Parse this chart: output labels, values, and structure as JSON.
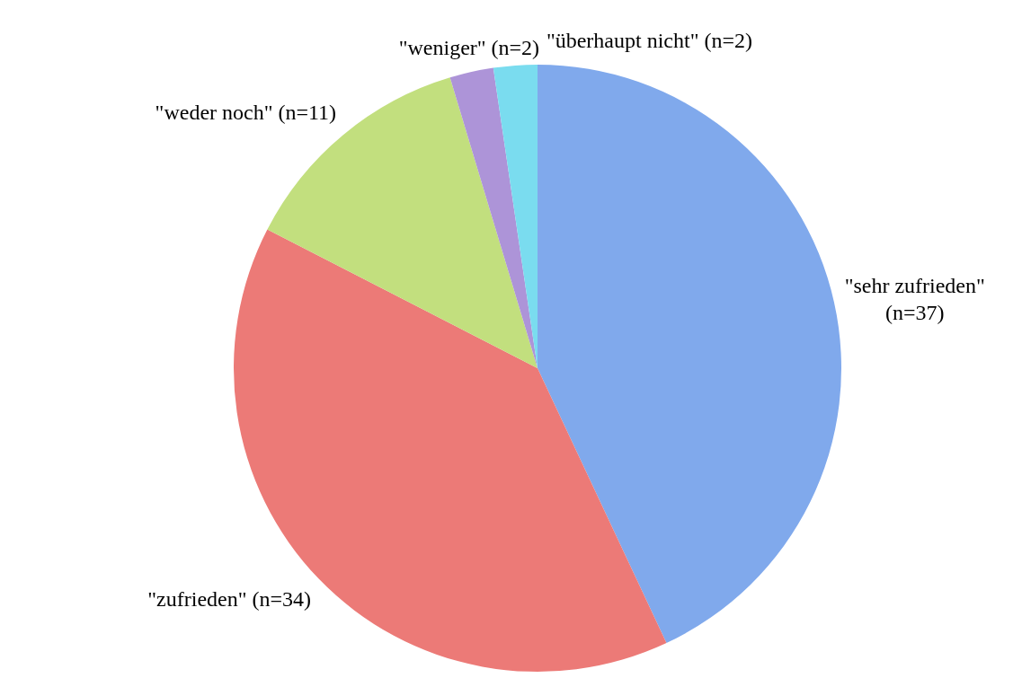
{
  "chart_data": {
    "type": "pie",
    "categories": [
      "\"sehr zufrieden\"",
      "\"zufrieden\"",
      "\"weder noch\"",
      "\"weniger\"",
      "\"überhaupt nicht\""
    ],
    "values": [
      37,
      34,
      11,
      2,
      2
    ],
    "value_labels": [
      "(n=37)",
      "(n=34)",
      "(n=11)",
      "(n=2)",
      "(n=2)"
    ],
    "colors": [
      "#80a9ec",
      "#ec7a77",
      "#c2df7e",
      "#ad94d8",
      "#7adcef"
    ]
  }
}
